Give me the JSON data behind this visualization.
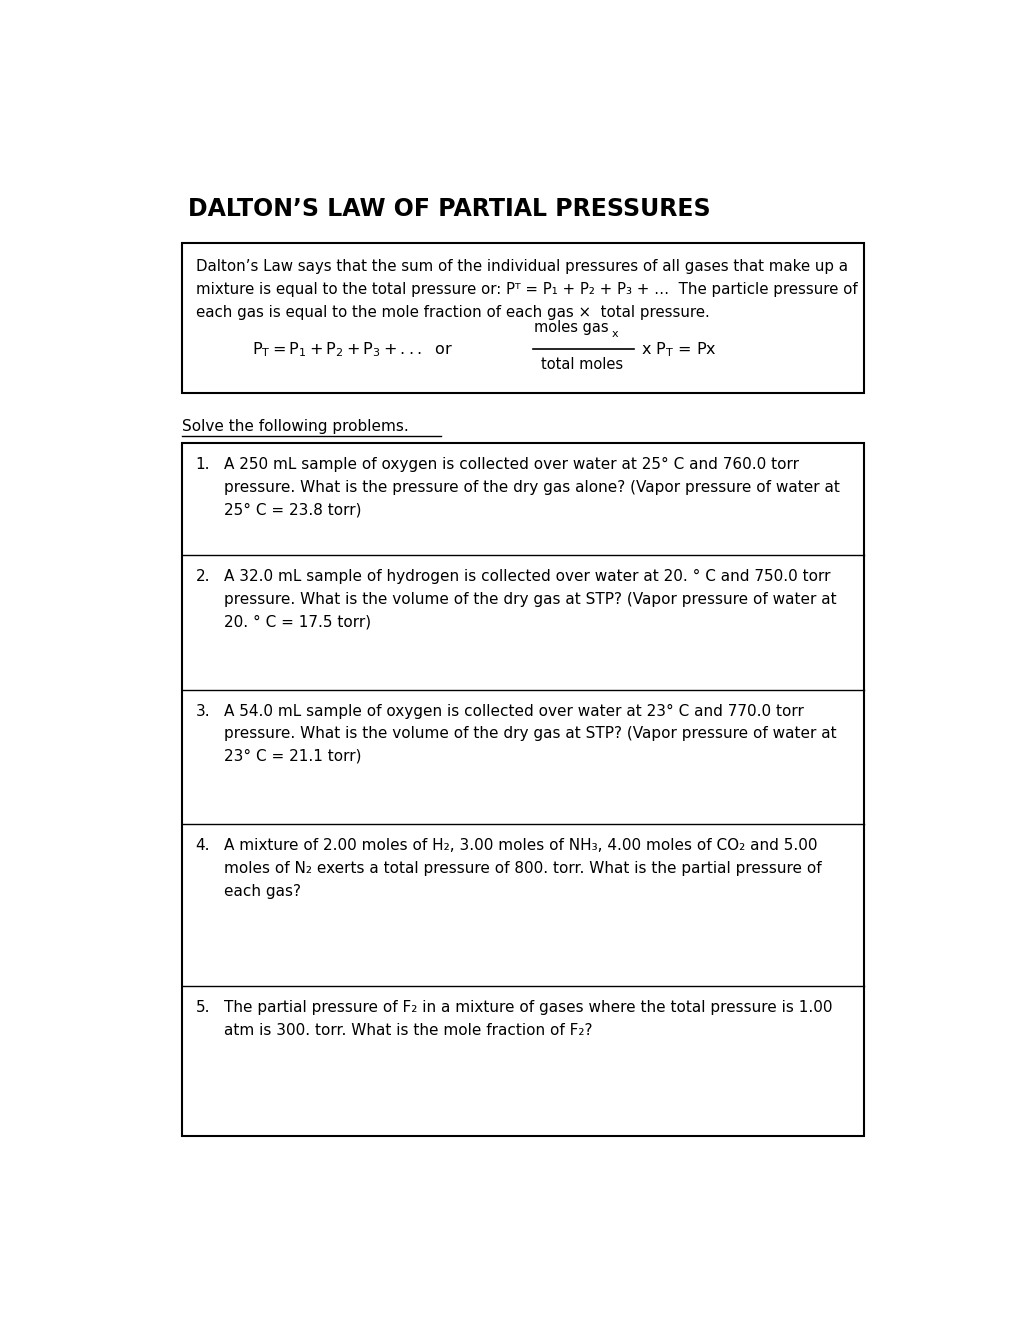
{
  "title": "DALTON’S LAW OF PARTIAL PRESSURES",
  "bg_color": "#ffffff",
  "text_color": "#000000",
  "intro_box": {
    "text_line1": "Dalton’s Law says that the sum of the individual pressures of all gases that make up a",
    "text_line2": "mixture is equal to the total pressure or: Pᵀ = P₁ + P₂ + P₃ + …  The particle pressure of",
    "text_line3": "each gas is equal to the mole fraction of each gas ×  total pressure."
  },
  "solve_label": "Solve the following problems.",
  "problems": [
    {
      "num": "1.",
      "line1": "A 250 mL sample of oxygen is collected over water at 25° C and 760.0 torr",
      "line2": "pressure. What is the pressure of the dry gas alone? (Vapor pressure of water at",
      "line3": "25° C = 23.8 torr)"
    },
    {
      "num": "2.",
      "line1": "A 32.0 mL sample of hydrogen is collected over water at 20. ° C and 750.0 torr",
      "line2": "pressure. What is the volume of the dry gas at STP? (Vapor pressure of water at",
      "line3": "20. ° C = 17.5 torr)"
    },
    {
      "num": "3.",
      "line1": "A 54.0 mL sample of oxygen is collected over water at 23° C and 770.0 torr",
      "line2": "pressure. What is the volume of the dry gas at STP? (Vapor pressure of water at",
      "line3": "23° C = 21.1 torr)"
    },
    {
      "num": "4.",
      "line1": "A mixture of 2.00 moles of H₂, 3.00 moles of NH₃, 4.00 moles of CO₂ and 5.00",
      "line2": "moles of N₂ exerts a total pressure of 800. torr. What is the partial pressure of",
      "line3": "each gas?"
    },
    {
      "num": "5.",
      "line1": "The partial pressure of F₂ in a mixture of gases where the total pressure is 1.00",
      "line2": "atm is 300. torr. What is the mole fraction of F₂?"
    }
  ],
  "problem_heights": [
    1.45,
    1.75,
    1.75,
    2.1,
    1.95
  ]
}
